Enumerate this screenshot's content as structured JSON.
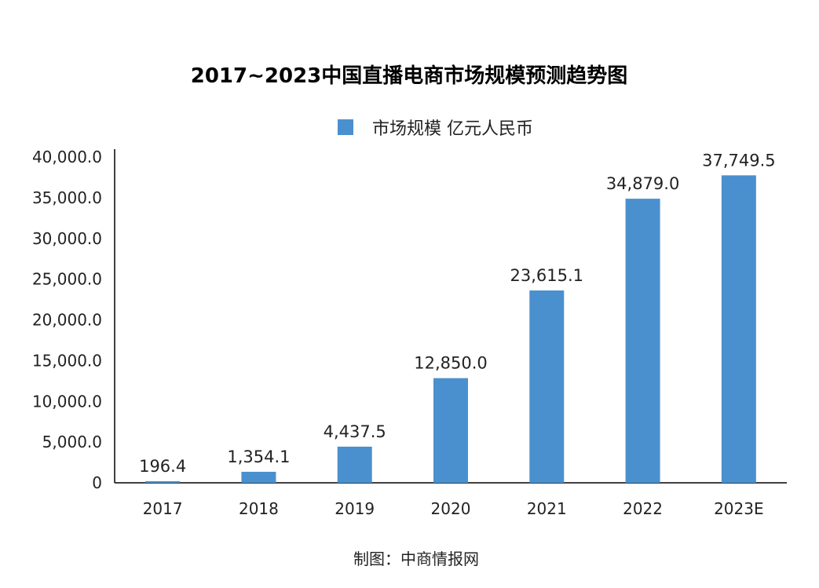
{
  "chart_data": {
    "type": "bar",
    "title": "2017~2023中国直播电商市场规模预测趋势图",
    "categories": [
      "2017",
      "2018",
      "2019",
      "2020",
      "2021",
      "2022",
      "2023E"
    ],
    "series": [
      {
        "name": "市场规模 亿元人民币",
        "values": [
          196.4,
          1354.1,
          4437.5,
          12850.0,
          23615.1,
          34879.0,
          37749.5
        ],
        "labels": [
          "196.4",
          "1,354.1",
          "4,437.5",
          "12,850.0",
          "23,615.1",
          "34,879.0",
          "37,749.5"
        ],
        "color": "#4a90cf"
      }
    ],
    "y_ticks": [
      "0",
      "5,000.0",
      "10,000.0",
      "15,000.0",
      "20,000.0",
      "25,000.0",
      "30,000.0",
      "35,000.0",
      "40,000.0"
    ],
    "ylim": [
      0,
      40000
    ],
    "xlabel": "",
    "ylabel": "",
    "grid": false,
    "legend_position": "top-center"
  },
  "source": "制图：中商情报网"
}
